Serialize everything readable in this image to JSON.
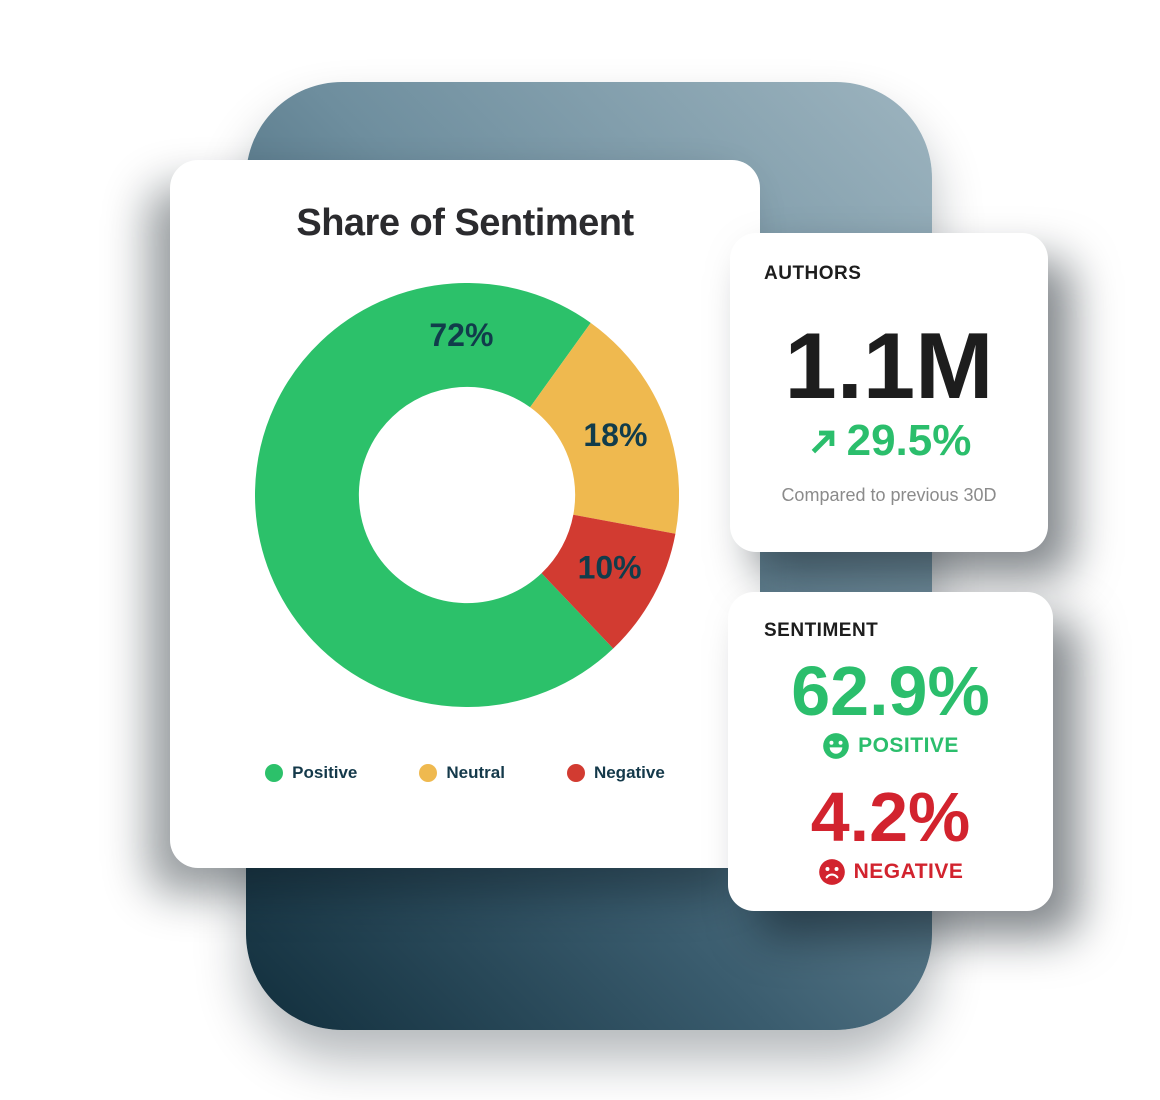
{
  "colors": {
    "positive_green": "#2BBE6C",
    "negative_red": "#D2232E",
    "slice_label_navy": "#113C4B",
    "legend_text_navy": "#14394A",
    "title_charcoal": "#2B2B2E",
    "stat_black": "#1D1D1D",
    "caption_gray": "#8B8B8B",
    "panel_gradient_top": "#9DB4BF",
    "panel_gradient_bottom": "#112E3C"
  },
  "chart_card": {
    "title": "Share of Sentiment"
  },
  "chart_data": {
    "type": "pie",
    "title": "Share of Sentiment",
    "categories": [
      "Positive",
      "Neutral",
      "Negative"
    ],
    "values": [
      72,
      18,
      10
    ],
    "colors": [
      "#2CC16A",
      "#EFB94F",
      "#D23B31"
    ],
    "labels": [
      "72%",
      "18%",
      "10%"
    ],
    "label_angles_deg": [
      358,
      68,
      117
    ],
    "label_color": "#113C4B",
    "start_angle_deg": 136.4,
    "inner_radius_ratio": 0.51,
    "legend_position": "bottom",
    "grid": false
  },
  "authors_card": {
    "heading": "AUTHORS",
    "value": "1.1M",
    "delta": "29.5%",
    "trend": "up",
    "caption": "Compared to previous 30D"
  },
  "sentiment_card": {
    "heading": "SENTIMENT",
    "positive": {
      "value": "62.9%",
      "label": "POSITIVE"
    },
    "negative": {
      "value": "4.2%",
      "label": "NEGATIVE"
    }
  }
}
